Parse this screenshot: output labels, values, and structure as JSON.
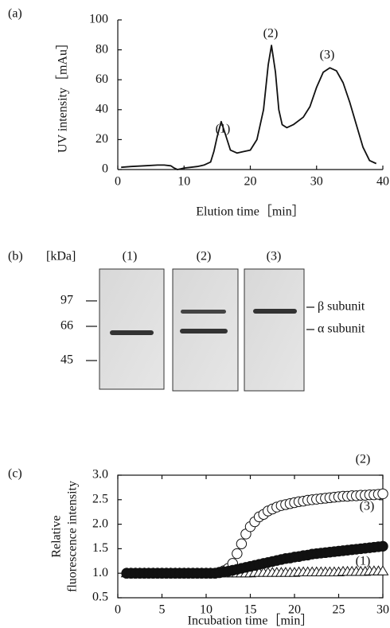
{
  "chart_data": [
    {
      "type": "line",
      "label": "(a)",
      "xlabel": "Elution time［min］",
      "ylabel": "UV intensity［mAu］",
      "x": [
        0.5,
        2,
        4,
        6,
        7,
        8,
        8.5,
        9,
        9.5,
        10,
        11,
        12,
        13,
        14,
        14.5,
        15,
        15.6,
        16.2,
        17,
        18,
        19,
        20,
        21,
        22,
        22.7,
        23.2,
        23.8,
        24.3,
        24.8,
        25.5,
        26.5,
        28,
        29,
        30,
        31,
        32,
        33,
        34,
        35,
        36,
        37,
        38,
        39
      ],
      "values": [
        1.5,
        2,
        2.5,
        3,
        3,
        2.5,
        1,
        0,
        0.5,
        1,
        1.5,
        2,
        3,
        5,
        12,
        22,
        32,
        24,
        13,
        11,
        12,
        13,
        20,
        40,
        70,
        83,
        65,
        40,
        30,
        28,
        30,
        35,
        42,
        55,
        65,
        68,
        66,
        58,
        45,
        30,
        15,
        6,
        4
      ],
      "color": "#111111",
      "xlim": [
        0,
        40
      ],
      "xticks": [
        0,
        10,
        20,
        30,
        40
      ],
      "ylim": [
        0,
        100
      ],
      "yticks": [
        0,
        20,
        40,
        60,
        80,
        100
      ],
      "frame": false,
      "annotations": [
        "(1)",
        "(2)",
        "(3)"
      ]
    },
    {
      "type": "scatter",
      "label": "(c)",
      "xlabel": "Incubation time［min］",
      "ylabel": [
        "Relative",
        "fluorescence intensity"
      ],
      "x": [
        1,
        1.5,
        2,
        2.5,
        3,
        3.5,
        4,
        4.5,
        5,
        5.5,
        6,
        6.5,
        7,
        7.5,
        8,
        8.5,
        9,
        9.5,
        10,
        10.5,
        11,
        11.5,
        12,
        12.5,
        13,
        13.5,
        14,
        14.5,
        15,
        15.5,
        16,
        16.5,
        17,
        17.5,
        18,
        18.5,
        19,
        19.5,
        20,
        20.5,
        21,
        21.5,
        22,
        22.5,
        23,
        23.5,
        24,
        24.5,
        25,
        25.5,
        26,
        26.5,
        27,
        27.5,
        28,
        28.5,
        29,
        29.5,
        30
      ],
      "series": [
        {
          "name": "(1)",
          "marker": "triangle",
          "color": "#111111",
          "values": [
            1,
            1,
            1,
            1,
            1,
            1,
            1,
            1,
            1,
            1,
            1,
            1,
            1,
            1,
            1,
            1,
            1,
            1,
            1,
            1,
            1,
            1,
            1,
            1,
            1,
            1,
            1,
            1,
            1,
            1.01,
            1.01,
            1.01,
            1.01,
            1.01,
            1.01,
            1.01,
            1.01,
            1.01,
            1.01,
            1.02,
            1.02,
            1.02,
            1.02,
            1.02,
            1.02,
            1.02,
            1.02,
            1.02,
            1.02,
            1.03,
            1.03,
            1.03,
            1.03,
            1.03,
            1.03,
            1.04,
            1.04,
            1.04,
            1.04
          ]
        },
        {
          "name": "(2)",
          "marker": "circle-open",
          "color": "#111111",
          "values": [
            1,
            1,
            1,
            1,
            1,
            1,
            1,
            1,
            1,
            1,
            1,
            1,
            1,
            1,
            1,
            1,
            1,
            1,
            1,
            1,
            1,
            1.02,
            1.05,
            1.1,
            1.2,
            1.4,
            1.6,
            1.8,
            1.95,
            2.05,
            2.15,
            2.2,
            2.27,
            2.31,
            2.35,
            2.38,
            2.4,
            2.42,
            2.44,
            2.46,
            2.47,
            2.49,
            2.5,
            2.51,
            2.52,
            2.53,
            2.54,
            2.55,
            2.56,
            2.57,
            2.57,
            2.58,
            2.58,
            2.59,
            2.59,
            2.6,
            2.6,
            2.61,
            2.62
          ]
        },
        {
          "name": "(3)",
          "marker": "circle",
          "color": "#111111",
          "values": [
            1,
            1,
            1,
            1,
            1,
            1,
            1,
            1,
            1,
            1,
            1,
            1,
            1,
            1,
            1,
            1,
            1,
            1,
            1,
            1,
            1,
            1.01,
            1.03,
            1.04,
            1.06,
            1.08,
            1.1,
            1.12,
            1.14,
            1.16,
            1.18,
            1.2,
            1.22,
            1.24,
            1.26,
            1.28,
            1.3,
            1.31,
            1.33,
            1.34,
            1.36,
            1.37,
            1.39,
            1.4,
            1.41,
            1.42,
            1.43,
            1.44,
            1.45,
            1.46,
            1.47,
            1.48,
            1.49,
            1.5,
            1.51,
            1.52,
            1.53,
            1.54,
            1.55
          ]
        }
      ],
      "xlim": [
        0,
        30
      ],
      "xticks": [
        0,
        5,
        10,
        15,
        20,
        25,
        30
      ],
      "ylim": [
        0.5,
        3.0
      ],
      "yticks": [
        0.5,
        {
          "value": 1.0,
          "label": "1.0"
        },
        1.5,
        {
          "value": 2.0,
          "label": "2.0"
        },
        2.5,
        {
          "value": 3.0,
          "label": "3.0"
        }
      ],
      "frame": true
    }
  ],
  "gel": {
    "label": "(b)",
    "unit": "[kDa]",
    "markers": [
      97,
      66,
      45
    ],
    "lanes": [
      "(1)",
      "(2)",
      "(3)"
    ],
    "bands": [
      "β subunit",
      "α subunit"
    ]
  }
}
